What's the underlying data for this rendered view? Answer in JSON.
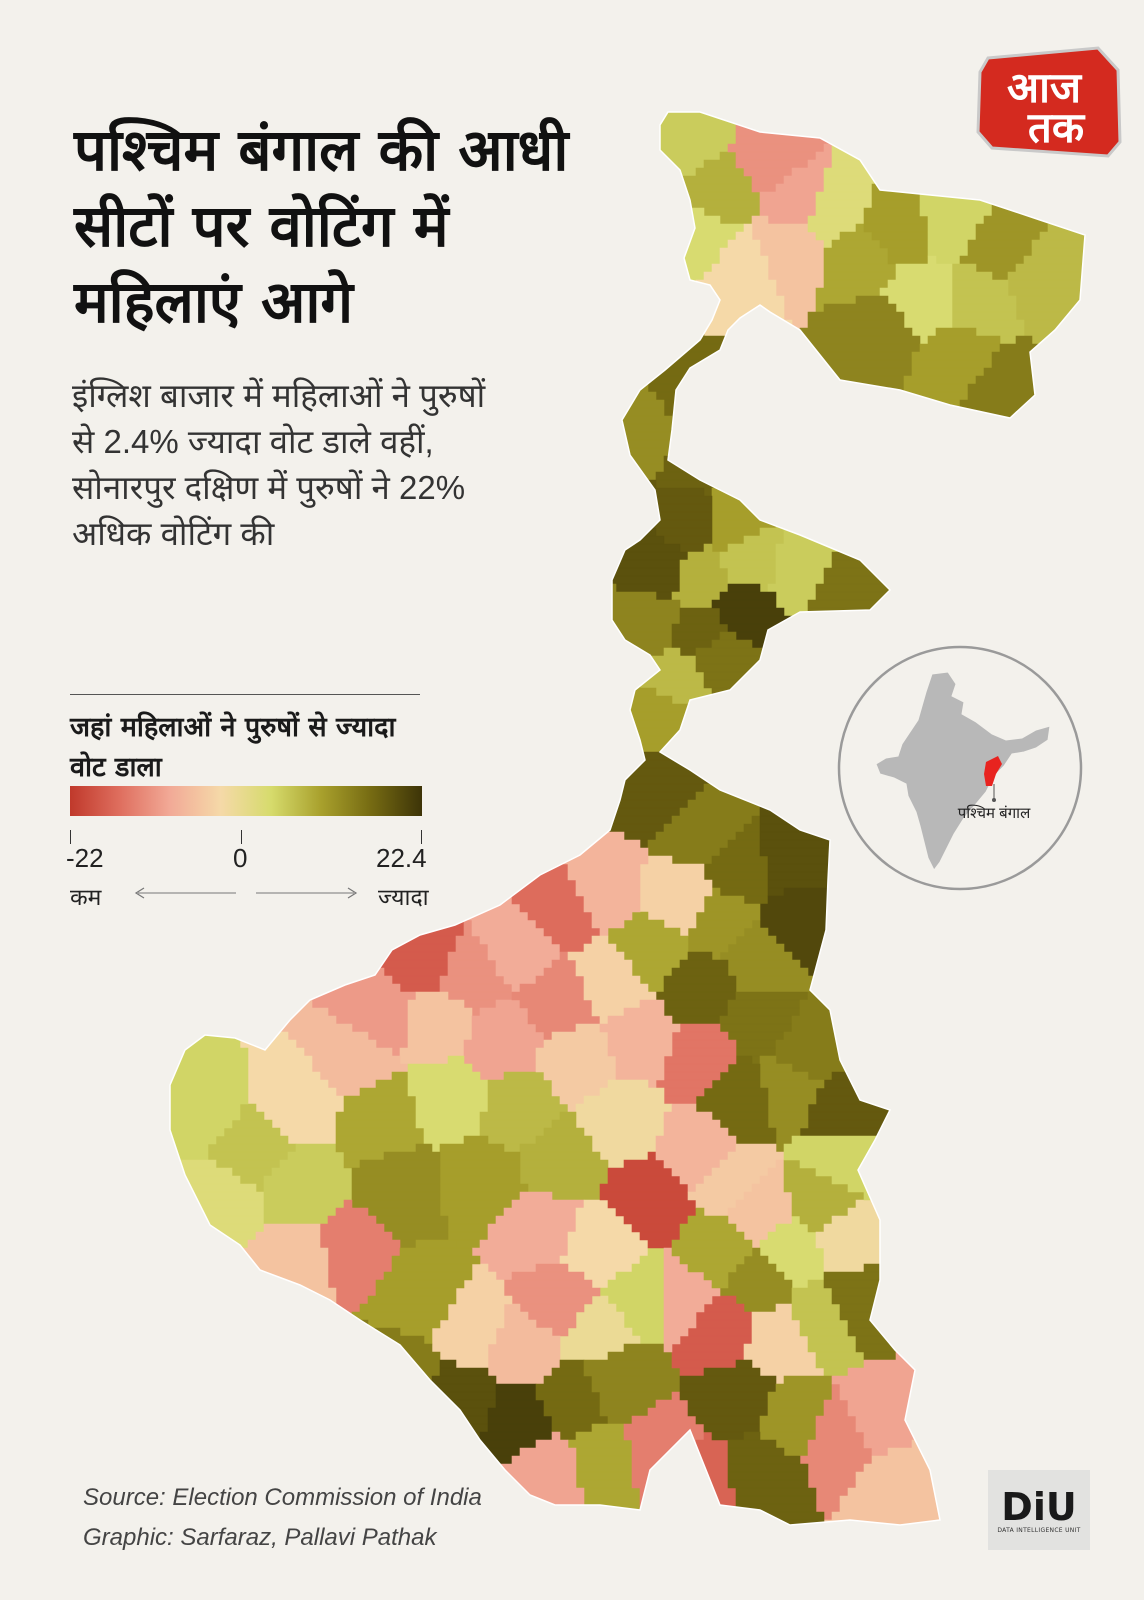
{
  "title": "पश्चिम बंगाल की आधी सीटों पर वोटिंग में महिलाएं आगे",
  "subtitle": "इंग्लिश बाजार में महिलाओं ने पुरुषों से 2.4% ज्यादा वोट डाले वहीं, सोनारपुर दक्षिण में पुरुषों ने 22% अधिक वोटिंग की",
  "brand": {
    "logo_text_top": "आज",
    "logo_text_bottom": "तक",
    "diu_text": "DiU",
    "diu_subtext": "DATA INTELLIGENCE UNIT"
  },
  "legend": {
    "title": "जहां महिलाओं ने पुरुषों से ज्यादा वोट डाला",
    "min_label": "-22",
    "mid_label": "0",
    "max_label": "22.4",
    "less_label": "कम",
    "more_label": "ज्यादा",
    "min": -22,
    "max": 22.4,
    "stops": [
      "#c0392b",
      "#df6f5f",
      "#f2aa97",
      "#f5d9a8",
      "#d6db6c",
      "#a8a02c",
      "#756a12",
      "#3d3408"
    ]
  },
  "inset": {
    "label": "पश्चिम बंगाल",
    "india_color": "#b8b8b8",
    "highlight_color": "#e8231f"
  },
  "source": {
    "line1": "Source: Election Commission of India",
    "line2": "Graphic:  Sarfaraz, Pallavi Pathak"
  },
  "map": {
    "region_values": [
      5,
      8,
      3,
      -12,
      -10,
      -6,
      -3,
      2,
      9,
      10,
      4,
      11,
      7,
      6,
      3,
      13,
      10,
      14,
      16,
      12,
      17,
      10,
      18,
      19,
      8,
      6,
      5,
      15,
      13,
      17,
      21,
      7,
      10,
      15,
      18,
      14,
      16,
      19,
      20,
      12,
      11,
      -4,
      9,
      17,
      15,
      14,
      18,
      12,
      16,
      -15,
      -18,
      -12,
      -9,
      -16,
      -8,
      -11,
      -6,
      -10,
      -13,
      -4,
      -7,
      -3,
      6,
      4,
      2,
      5,
      9,
      3,
      7,
      -5,
      -8,
      -2,
      8,
      10,
      12,
      -14,
      -6,
      -9,
      -3,
      4,
      -1,
      -12,
      -7,
      -4,
      10,
      14,
      19,
      21,
      16,
      13,
      9,
      -10,
      -14,
      -17,
      -20,
      -8,
      -5,
      -6,
      3,
      8,
      -2,
      12,
      -18,
      -9,
      -4,
      6,
      15,
      18,
      11,
      -13,
      -10,
      -6,
      17,
      9,
      4,
      -11,
      -7
    ]
  }
}
